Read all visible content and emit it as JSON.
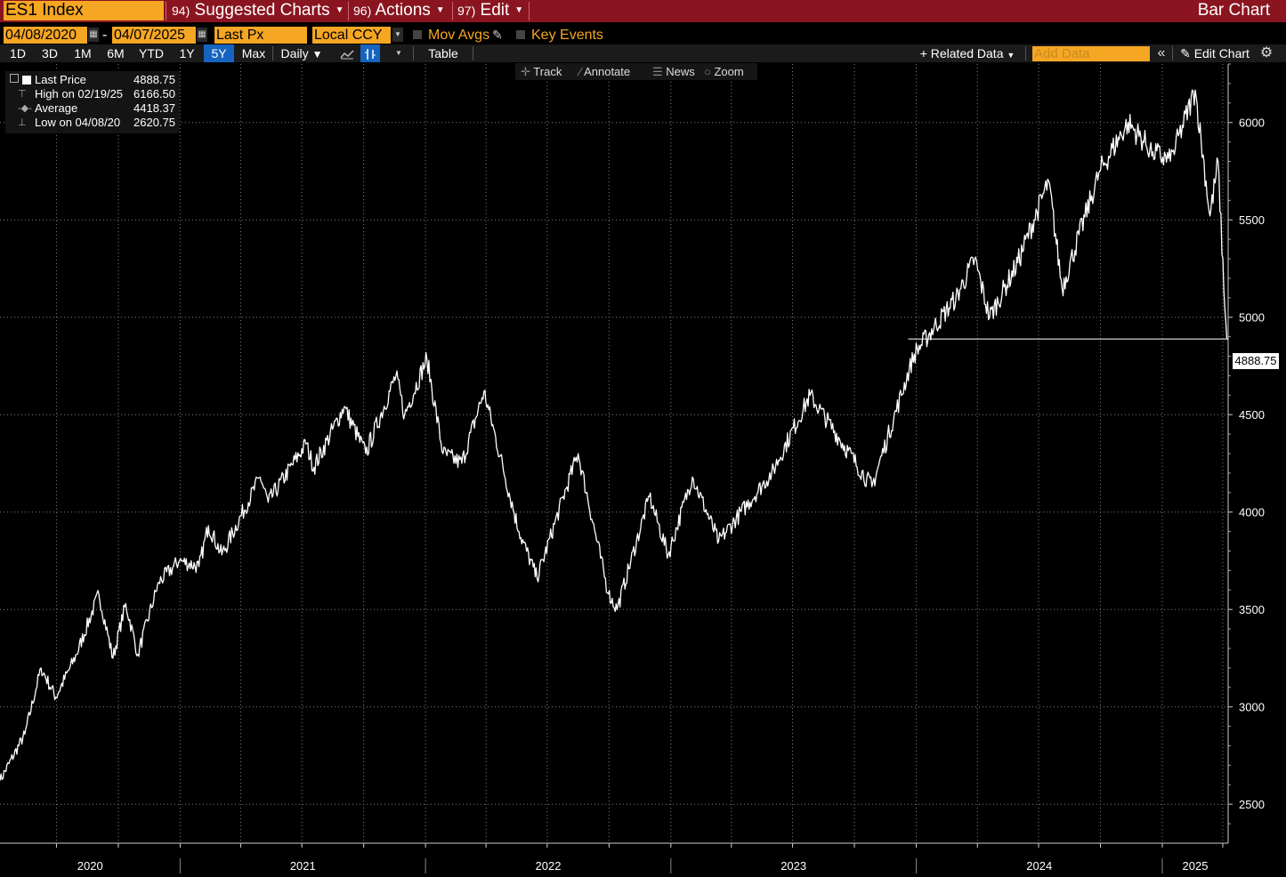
{
  "header": {
    "ticker": "ES1 Index",
    "menus": [
      {
        "num": "94)",
        "label": "Suggested Charts"
      },
      {
        "num": "96)",
        "label": "Actions"
      },
      {
        "num": "97)",
        "label": "Edit"
      }
    ],
    "title": "Bar Chart"
  },
  "options": {
    "start_date": "04/08/2020",
    "date_sep": "-",
    "end_date": "04/07/2025",
    "field": "Last Px",
    "currency": "Local CCY",
    "mov_avgs": "Mov Avgs",
    "key_events": "Key Events"
  },
  "ranges": [
    "1D",
    "3D",
    "1M",
    "6M",
    "YTD",
    "1Y",
    "5Y",
    "Max"
  ],
  "active_range": "5Y",
  "toolbar": {
    "frequency": "Daily",
    "table": "Table",
    "related_data": "Related Data",
    "add_data_placeholder": "Add Data",
    "edit_chart": "Edit Chart"
  },
  "tools": [
    "Track",
    "Annotate",
    "News",
    "Zoom"
  ],
  "legend": {
    "rows": [
      {
        "label": "Last Price",
        "value": "4888.75"
      },
      {
        "label": "High on 02/19/25",
        "value": "6166.50"
      },
      {
        "label": "Average",
        "value": "4418.37"
      },
      {
        "label": "Low on 04/08/20",
        "value": "2620.75"
      }
    ]
  },
  "chart_data": {
    "type": "line",
    "series": [
      {
        "name": "Last Price",
        "x": [
          "2020-04-08",
          "2020-05-15",
          "2020-06-08",
          "2020-06-30",
          "2020-07-31",
          "2020-09-02",
          "2020-09-23",
          "2020-10-12",
          "2020-10-30",
          "2020-11-30",
          "2020-12-31",
          "2021-01-29",
          "2021-02-12",
          "2021-03-04",
          "2021-04-30",
          "2021-05-12",
          "2021-07-07",
          "2021-07-19",
          "2021-09-02",
          "2021-10-04",
          "2021-11-18",
          "2021-12-01",
          "2022-01-03",
          "2022-01-27",
          "2022-02-24",
          "2022-03-29",
          "2022-05-20",
          "2022-06-16",
          "2022-07-29",
          "2022-08-16",
          "2022-09-30",
          "2022-10-13",
          "2022-11-30",
          "2022-12-28",
          "2023-02-02",
          "2023-03-13",
          "2023-05-31",
          "2023-07-27",
          "2023-10-27",
          "2023-12-29",
          "2024-02-29",
          "2024-03-28",
          "2024-04-19",
          "2024-05-31",
          "2024-07-16",
          "2024-08-05",
          "2024-09-30",
          "2024-11-11",
          "2024-12-18",
          "2025-01-13",
          "2025-02-19",
          "2025-03-13",
          "2025-03-25",
          "2025-04-04",
          "2025-04-07"
        ],
        "y": [
          2620.75,
          2860,
          3200,
          3050,
          3270,
          3580,
          3250,
          3530,
          3270,
          3640,
          3750,
          3720,
          3930,
          3780,
          4180,
          4050,
          4350,
          4230,
          4540,
          4300,
          4700,
          4500,
          4790,
          4300,
          4250,
          4620,
          3900,
          3660,
          4120,
          4300,
          3580,
          3500,
          4080,
          3780,
          4180,
          3850,
          4200,
          4600,
          4130,
          4810,
          5100,
          5300,
          5000,
          5280,
          5700,
          5150,
          5750,
          6000,
          5850,
          5800,
          6166.5,
          5520,
          5800,
          5050,
          4888.75
        ]
      }
    ],
    "ylim": [
      2300,
      6300
    ],
    "yticks": [
      "2500",
      "3000",
      "3500",
      "4000",
      "4500",
      "5000",
      "5500",
      "6000"
    ],
    "xticks": [
      "2020",
      "2021",
      "2022",
      "2023",
      "2024",
      "2025"
    ],
    "last_label": "4888.75",
    "grid": true,
    "colors": {
      "line": "#ffffff",
      "grid": "#7f7f7f",
      "background": "#000000"
    }
  }
}
